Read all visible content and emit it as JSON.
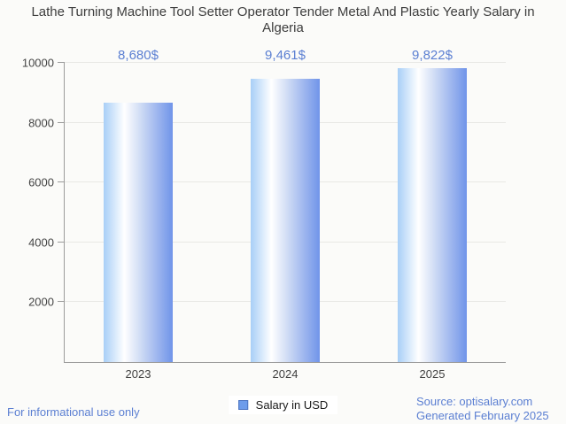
{
  "page": {
    "title": "Lathe Turning Machine Tool Setter Operator Tender Metal And Plastic Yearly Salary in Algeria"
  },
  "legend": {
    "label": "Salary in USD",
    "marker_fill": "#6d9ceb",
    "marker_border": "#4a72c0"
  },
  "footer": {
    "disclaimer": "For informational use only",
    "source": "Source: optisalary.com",
    "generated": "Generated February 2025"
  },
  "colors": {
    "accent_blue": "#5b7fd2",
    "title_text": "#3d3d3d",
    "axis_line": "#9b9b9b",
    "gridline": "#e8e8e5",
    "background": "#fbfbf9",
    "bar_gradient": [
      "#a8cff7",
      "#ffffff",
      "#ccd9f4",
      "#7094e9"
    ]
  },
  "chart_data": {
    "type": "bar",
    "title": "Lathe Turning Machine Tool Setter Operator Tender Metal And Plastic Yearly Salary in Algeria",
    "categories": [
      "2023",
      "2024",
      "2025"
    ],
    "values": [
      8680,
      9461,
      9822
    ],
    "value_labels": [
      "8,680$",
      "9,461$",
      "9,822$"
    ],
    "series_name": "Salary in USD",
    "xlabel": "",
    "ylabel": "",
    "ylim": [
      0,
      10000
    ],
    "yticks": [
      2000,
      4000,
      6000,
      8000,
      10000
    ],
    "ytick_labels": [
      "2000",
      "4000",
      "6000",
      "8000",
      "10000"
    ],
    "grid": true,
    "legend_position": "bottom"
  }
}
